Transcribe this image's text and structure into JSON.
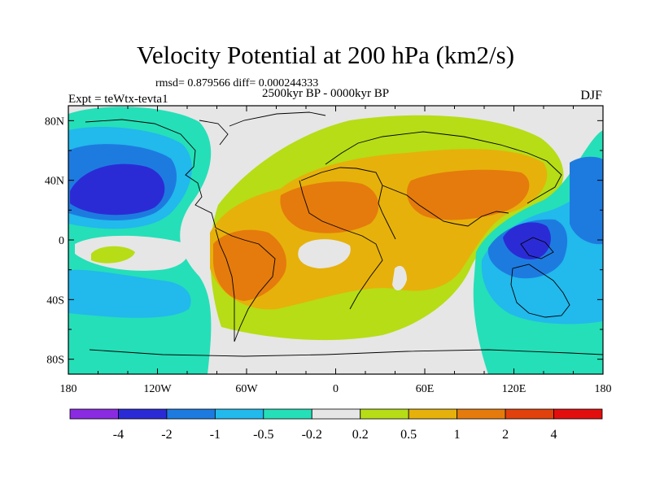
{
  "title": "Velocity Potential at 200 hPa (km2/s)",
  "stats": "rmsd= 0.879566 diff= 0.000244333",
  "period": "2500kyr BP - 0000kyr BP",
  "experiment": "Expt = teWtx-tevta1",
  "season": "DJF",
  "lat_ticks": [
    "80N",
    "40N",
    "0",
    "40S",
    "80S"
  ],
  "lon_ticks": [
    "180",
    "120W",
    "60W",
    "0",
    "60E",
    "120E",
    "180"
  ],
  "colorbar": {
    "labels": [
      "-4",
      "-2",
      "-1",
      "-0.5",
      "-0.2",
      "0.2",
      "0.5",
      "1",
      "2",
      "4"
    ],
    "colors": [
      "#8a2be2",
      "#2b2bd6",
      "#1d7be0",
      "#22b9ec",
      "#25dfb8",
      "#e6e6e6",
      "#b6dd16",
      "#e6b10b",
      "#e57b0c",
      "#e1410c",
      "#e20e0e"
    ]
  },
  "field_colors": {
    "neutral": "#e6e6e6",
    "teal": "#25dfb8",
    "cyan": "#22b9ec",
    "blue": "#1d7be0",
    "deep_blue": "#2b2bd6",
    "green": "#b6dd16",
    "yellow": "#e6b10b",
    "orange": "#e57b0c"
  }
}
